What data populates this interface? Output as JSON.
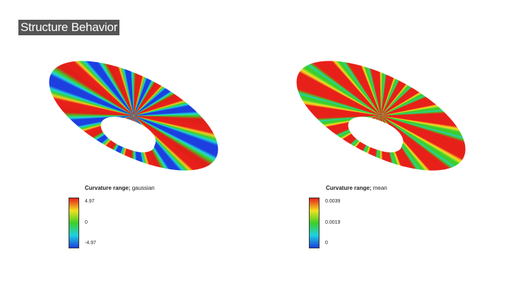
{
  "header": {
    "title": "Structure Behavior"
  },
  "panels": [
    {
      "legend": {
        "label": "Curvature range;",
        "measure": "gaussian",
        "ticks": [
          "4.97",
          "0",
          "-4.97"
        ]
      }
    },
    {
      "legend": {
        "label": "Curvature range;",
        "measure": "mean",
        "ticks": [
          "0.0039",
          "0.0019",
          "0"
        ]
      }
    }
  ]
}
